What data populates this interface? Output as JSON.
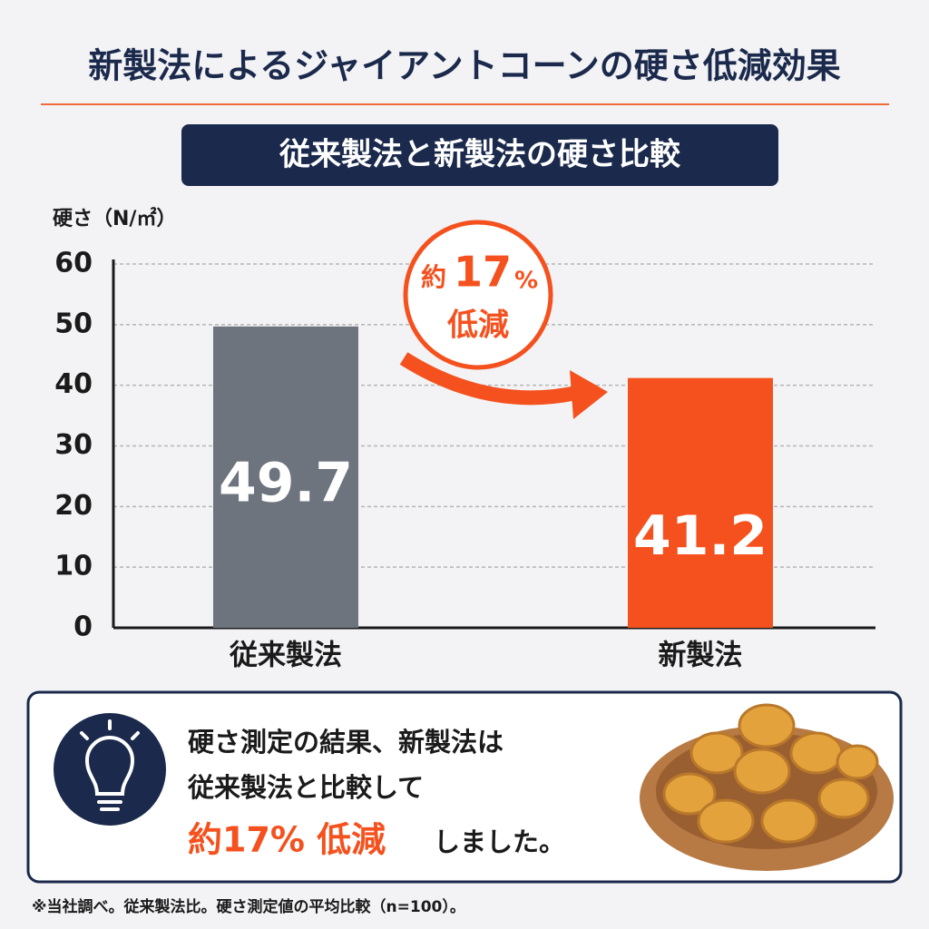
{
  "chart_data": {
    "type": "bar",
    "title": "新製法によるジャイアントコーンの硬さ低減効果",
    "subtitle": "従来製法と新製法の硬さ比較",
    "y_label": "硬さ（N/㎡）",
    "categories": [
      "従来製法",
      "新製法"
    ],
    "values": [
      49.7,
      41.2
    ],
    "colors": [
      "#6d747d",
      "#f4511e"
    ],
    "ylim": [
      0,
      60
    ],
    "yticks": [
      0,
      10,
      20,
      30,
      40,
      50,
      60
    ],
    "grid": true,
    "annotation": {
      "prefix": "約",
      "number": "17",
      "unit": "%",
      "text": "低減"
    }
  },
  "callout": {
    "lines": [
      "硬さ測定の結果、新製法は",
      "従来製法と比較して"
    ],
    "highlight": "約17% 低減",
    "ending": "しました。"
  },
  "footnote": "※当社調べ。従来製法比。硬さ測定値の平均比較（n=100）。"
}
